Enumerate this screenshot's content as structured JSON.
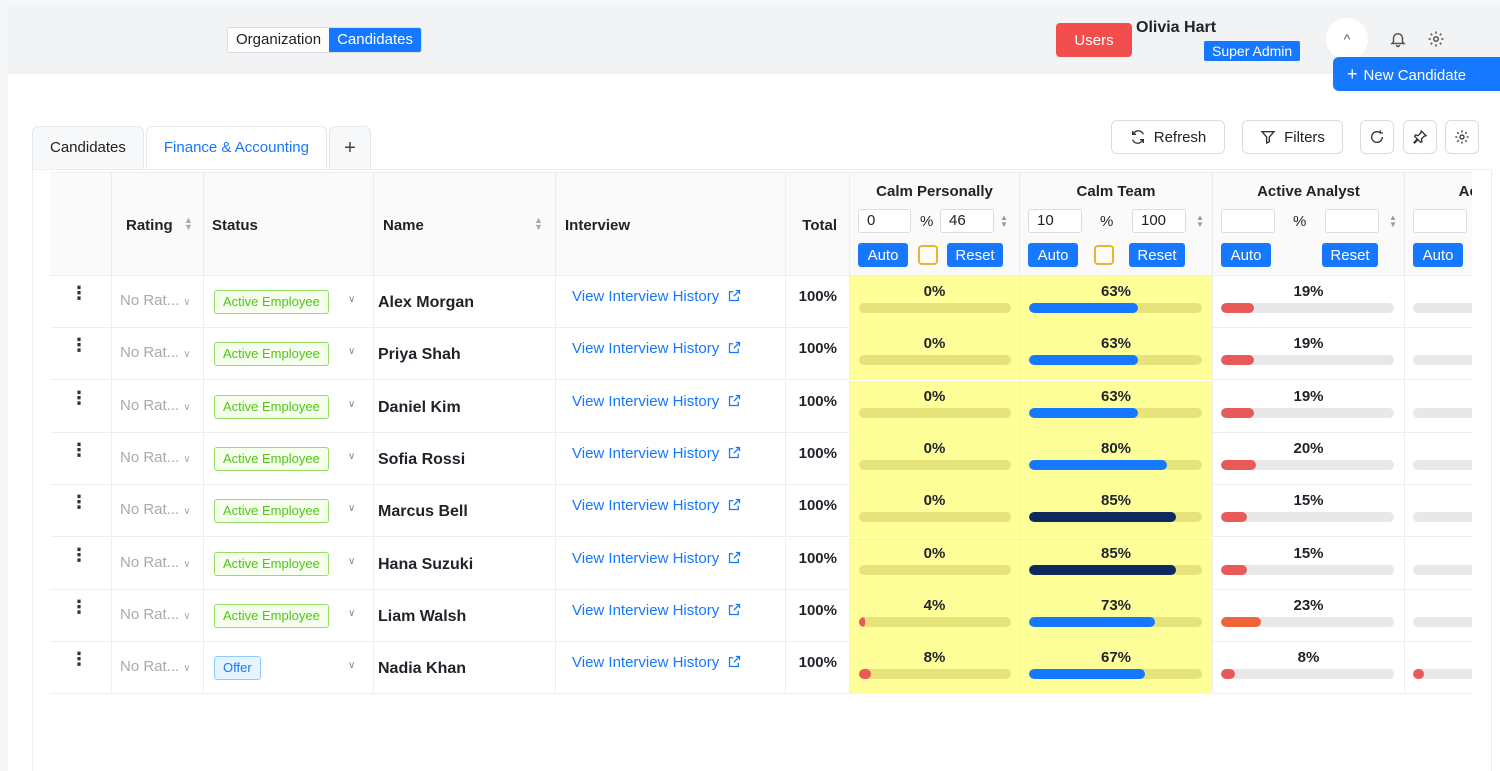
{
  "header": {
    "segments": [
      "Organization",
      "Candidates"
    ],
    "active_segment": 1,
    "users_label": "Users",
    "user_name": "Olivia Hart",
    "user_role": "Super Admin",
    "avatar_initials": "^"
  },
  "tabs": [
    {
      "label": "Candidates",
      "active": false
    },
    {
      "label": "Finance & Accounting",
      "active": true
    },
    {
      "label": "+",
      "active": false
    }
  ],
  "new_candidate_label": "New Candidate",
  "toolbar": {
    "refresh_label": "Refresh",
    "filters_label": "Filters"
  },
  "columns": {
    "rating": "Rating",
    "status": "Status",
    "name": "Name",
    "interview": "Interview",
    "total": "Total"
  },
  "metrics": [
    {
      "title": "Calm Personally",
      "min": "0",
      "max": "46",
      "pct_sign": "%",
      "auto": "Auto",
      "reset": "Reset",
      "highlight": true
    },
    {
      "title": "Calm Team",
      "min": "10",
      "max": "100",
      "pct_sign": "%",
      "auto": "Auto",
      "reset": "Reset",
      "highlight": true
    },
    {
      "title": "Active Analyst",
      "min": "",
      "max": "",
      "pct_sign": "%",
      "auto": "Auto",
      "reset": "Reset",
      "highlight": false
    },
    {
      "title": "Activ",
      "min": "",
      "max": "",
      "pct_sign": "",
      "auto": "Auto",
      "reset": "",
      "highlight": false
    }
  ],
  "rows": [
    {
      "rating": "No Rat...",
      "status": "Active Employee",
      "status_color": "green",
      "name": "Alex Morgan",
      "interview": "View Interview History",
      "total": "100%",
      "m": [
        {
          "label": "0%",
          "v": 0,
          "c": "#e85a5a"
        },
        {
          "label": "63%",
          "v": 63,
          "c": "#1677ff"
        },
        {
          "label": "19%",
          "v": 19,
          "c": "#e85a5a"
        },
        {
          "label": "",
          "v": 0,
          "c": "#e85a5a"
        }
      ]
    },
    {
      "rating": "No Rat...",
      "status": "Active Employee",
      "status_color": "green",
      "name": "Priya Shah",
      "interview": "View Interview History",
      "total": "100%",
      "m": [
        {
          "label": "0%",
          "v": 0,
          "c": "#e85a5a"
        },
        {
          "label": "63%",
          "v": 63,
          "c": "#1677ff"
        },
        {
          "label": "19%",
          "v": 19,
          "c": "#e85a5a"
        },
        {
          "label": "",
          "v": 0,
          "c": "#e85a5a"
        }
      ]
    },
    {
      "rating": "No Rat...",
      "status": "Active Employee",
      "status_color": "green",
      "name": "Daniel Kim",
      "interview": "View Interview History",
      "total": "100%",
      "m": [
        {
          "label": "0%",
          "v": 0,
          "c": "#e85a5a"
        },
        {
          "label": "63%",
          "v": 63,
          "c": "#1677ff"
        },
        {
          "label": "19%",
          "v": 19,
          "c": "#e85a5a"
        },
        {
          "label": "",
          "v": 0,
          "c": "#e85a5a"
        }
      ]
    },
    {
      "rating": "No Rat...",
      "status": "Active Employee",
      "status_color": "green",
      "name": "Sofia Rossi",
      "interview": "View Interview History",
      "total": "100%",
      "m": [
        {
          "label": "0%",
          "v": 0,
          "c": "#e85a5a"
        },
        {
          "label": "80%",
          "v": 80,
          "c": "#1677ff"
        },
        {
          "label": "20%",
          "v": 20,
          "c": "#e85a5a"
        },
        {
          "label": "",
          "v": 0,
          "c": "#e85a5a"
        }
      ]
    },
    {
      "rating": "No Rat...",
      "status": "Active Employee",
      "status_color": "green",
      "name": "Marcus Bell",
      "interview": "View Interview History",
      "total": "100%",
      "m": [
        {
          "label": "0%",
          "v": 0,
          "c": "#e85a5a"
        },
        {
          "label": "85%",
          "v": 85,
          "c": "#0d2a5e"
        },
        {
          "label": "15%",
          "v": 15,
          "c": "#e85a5a"
        },
        {
          "label": "",
          "v": 0,
          "c": "#e85a5a"
        }
      ]
    },
    {
      "rating": "No Rat...",
      "status": "Active Employee",
      "status_color": "green",
      "name": "Hana Suzuki",
      "interview": "View Interview History",
      "total": "100%",
      "m": [
        {
          "label": "0%",
          "v": 0,
          "c": "#e85a5a"
        },
        {
          "label": "85%",
          "v": 85,
          "c": "#0d2a5e"
        },
        {
          "label": "15%",
          "v": 15,
          "c": "#e85a5a"
        },
        {
          "label": "",
          "v": 0,
          "c": "#e85a5a"
        }
      ]
    },
    {
      "rating": "No Rat...",
      "status": "Active Employee",
      "status_color": "green",
      "name": "Liam Walsh",
      "interview": "View Interview History",
      "total": "100%",
      "m": [
        {
          "label": "4%",
          "v": 4,
          "c": "#e85a5a"
        },
        {
          "label": "73%",
          "v": 73,
          "c": "#1677ff"
        },
        {
          "label": "23%",
          "v": 23,
          "c": "#f0643c"
        },
        {
          "label": "",
          "v": 0,
          "c": "#e85a5a"
        }
      ]
    },
    {
      "rating": "No Rat...",
      "status": "Offer",
      "status_color": "blue",
      "name": "Nadia Khan",
      "interview": "View Interview History",
      "total": "100%",
      "m": [
        {
          "label": "8%",
          "v": 8,
          "c": "#e85a5a"
        },
        {
          "label": "67%",
          "v": 67,
          "c": "#1677ff"
        },
        {
          "label": "8%",
          "v": 8,
          "c": "#e85a5a"
        },
        {
          "label": "",
          "v": 8,
          "c": "#e85a5a"
        }
      ]
    }
  ]
}
